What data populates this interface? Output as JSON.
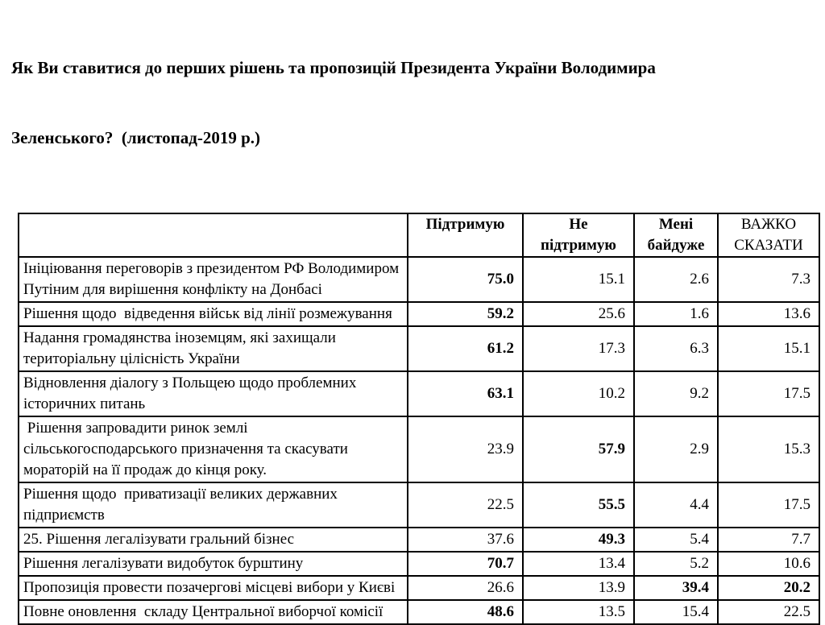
{
  "title": {
    "line1": "Як Ви ставитися до перших рішень та пропозицій Президента України Володимира",
    "line2": "Зеленського?  (листопад-2019 р.)"
  },
  "table": {
    "header": [
      "Підтримую",
      "Не підтримую",
      "Мені байдуже",
      "ВАЖКО СКАЗАТИ"
    ],
    "rows": [
      {
        "label": "Ініціювання переговорів з президентом РФ Володимиром Путіним для вирішення конфлікту на Донбасі",
        "values": [
          "75.0",
          "15.1",
          "2.6",
          "7.3"
        ],
        "bold": [
          true,
          false,
          false,
          false
        ]
      },
      {
        "label": "Рішення щодо  відведення військ від лінії розмежування",
        "values": [
          "59.2",
          "25.6",
          "1.6",
          "13.6"
        ],
        "bold": [
          true,
          false,
          false,
          false
        ]
      },
      {
        "label": "Надання громадянства іноземцям, які захищали територіальну цілісність України",
        "values": [
          "61.2",
          "17.3",
          "6.3",
          "15.1"
        ],
        "bold": [
          true,
          false,
          false,
          false
        ]
      },
      {
        "label": "Відновлення діалогу з Польщею щодо проблемних історичних питань",
        "values": [
          "63.1",
          "10.2",
          "9.2",
          "17.5"
        ],
        "bold": [
          true,
          false,
          false,
          false
        ]
      },
      {
        "label": " Рішення запровадити ринок землі сільськогосподарського призначення та скасувати мораторій на її продаж до кінця року.",
        "values": [
          "23.9",
          "57.9",
          "2.9",
          "15.3"
        ],
        "bold": [
          false,
          true,
          false,
          false
        ]
      },
      {
        "label": "Рішення щодо  приватизації великих державних підприємств",
        "values": [
          "22.5",
          "55.5",
          "4.4",
          "17.5"
        ],
        "bold": [
          false,
          true,
          false,
          false
        ]
      },
      {
        "label": "25. Рішення легалізувати гральний бізнес",
        "values": [
          "37.6",
          "49.3",
          "5.4",
          "7.7"
        ],
        "bold": [
          false,
          true,
          false,
          false
        ]
      },
      {
        "label": "Рішення легалізувати видобуток бурштину",
        "values": [
          "70.7",
          "13.4",
          "5.2",
          "10.6"
        ],
        "bold": [
          true,
          false,
          false,
          false
        ]
      },
      {
        "label": "Пропозиція провести позачергові місцеві вибори у Києві",
        "values": [
          "26.6",
          "13.9",
          "39.4",
          "20.2"
        ],
        "bold": [
          false,
          false,
          true,
          true
        ]
      },
      {
        "label": "Повне оновлення  складу Центральної виборчої комісії",
        "values": [
          "48.6",
          "13.5",
          "15.4",
          "22.5"
        ],
        "bold": [
          true,
          false,
          false,
          false
        ]
      }
    ]
  }
}
